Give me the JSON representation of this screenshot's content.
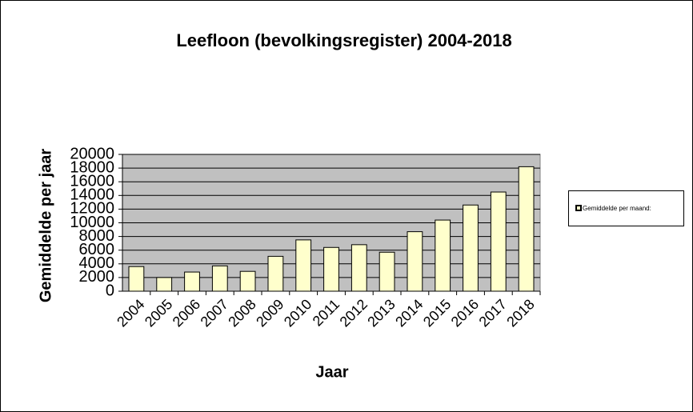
{
  "chart_data": {
    "type": "bar",
    "title": "Leefloon (bevolkingsregister) 2004-2018",
    "x_label": "Jaar",
    "y_label": "Gemiddelde per jaar",
    "categories": [
      "2004",
      "2005",
      "2006",
      "2007",
      "2008",
      "2009",
      "2010",
      "2011",
      "2012",
      "2013",
      "2014",
      "2015",
      "2016",
      "2017",
      "2018"
    ],
    "series": [
      {
        "name": "Gemiddelde per maand:",
        "color": "#ffffcc",
        "values": [
          3600,
          2000,
          2800,
          3700,
          2900,
          5100,
          7500,
          6400,
          6800,
          5700,
          8700,
          10400,
          12600,
          14500,
          18200
        ]
      }
    ],
    "ylim": [
      0,
      20000
    ],
    "yticks": [
      0,
      2000,
      4000,
      6000,
      8000,
      10000,
      12000,
      14000,
      16000,
      18000,
      20000
    ],
    "grid": true,
    "legend": "right",
    "plot_background": "#c0c0c0"
  }
}
